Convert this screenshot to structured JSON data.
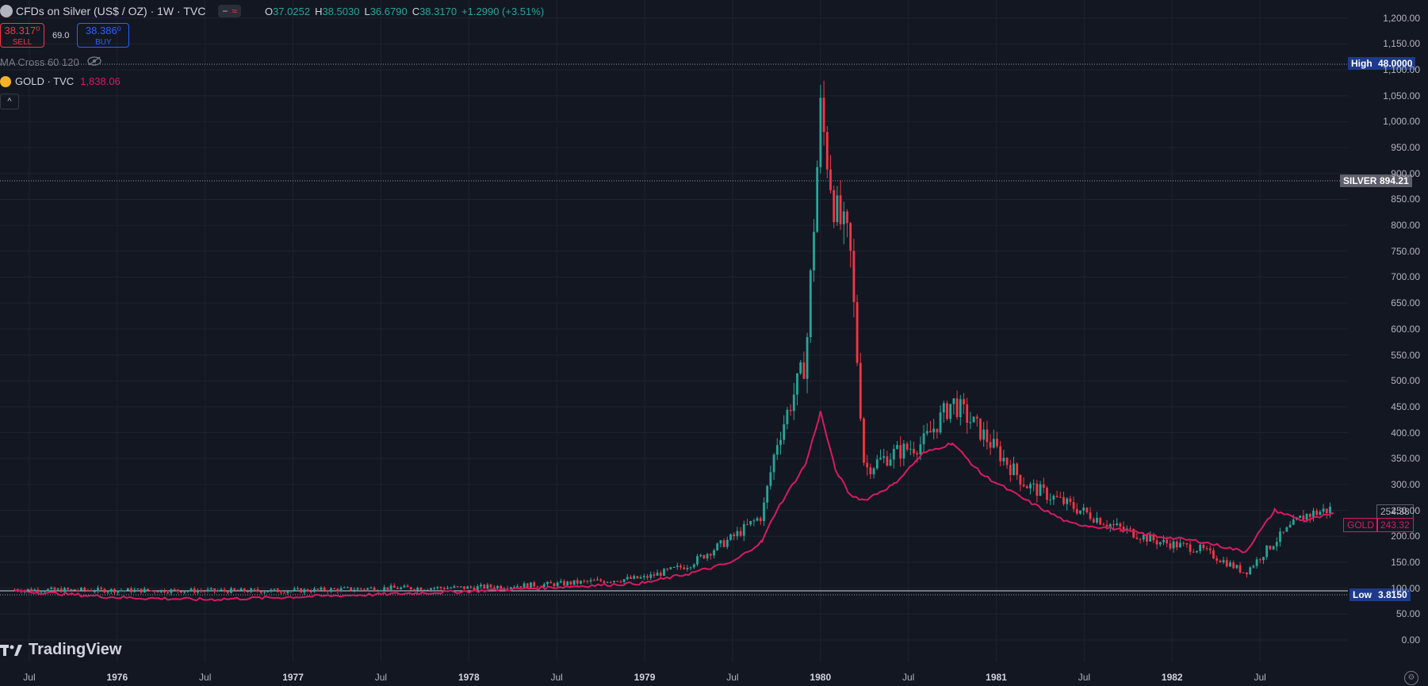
{
  "header": {
    "title": "CFDs on Silver (US$ / OZ) · 1W · TVC",
    "ohlc": [
      {
        "k": "O",
        "v": "37.0252"
      },
      {
        "k": "H",
        "v": "38.5030"
      },
      {
        "k": "L",
        "v": "36.6790"
      },
      {
        "k": "C",
        "v": "38.3170"
      },
      {
        "k": "",
        "v": "+1.2990 (+3.51%)"
      }
    ],
    "badge_dash": "−",
    "badge_wave": "≈"
  },
  "trade": {
    "sell_price": "38.317⁰",
    "sell_label": "SELL",
    "spread": "69.0",
    "buy_price": "38.386⁰",
    "buy_label": "BUY"
  },
  "indicators": {
    "ma_cross": "MA Cross 60 120",
    "compare_symbol": "GOLD · TVC",
    "compare_value": "1,838.06"
  },
  "price_axis": {
    "labels": [
      "1,200.00",
      "1,150.00",
      "1,100.00",
      "1,050.00",
      "1,000.00",
      "950.00",
      "900.00",
      "850.00",
      "800.00",
      "750.00",
      "700.00",
      "650.00",
      "600.00",
      "550.00",
      "500.00",
      "450.00",
      "400.00",
      "350.00",
      "300.00",
      "250.00",
      "200.00",
      "150.00",
      "100.00",
      "50.00",
      "0.00"
    ]
  },
  "time_axis": {
    "labels": [
      "Jul",
      "1976",
      "Jul",
      "1977",
      "Jul",
      "1978",
      "Jul",
      "1979",
      "Jul",
      "1980",
      "Jul",
      "1981",
      "Jul",
      "1982",
      "Jul"
    ]
  },
  "tags": {
    "high_label": "High",
    "high_value": "48.0000",
    "silver_label": "SILVER",
    "silver_value": "894.21",
    "last_value": "254.38",
    "gold_label": "GOLD",
    "gold_value": "243.32",
    "low_label": "Low",
    "low_value": "3.8150"
  },
  "colors": {
    "background": "#131722",
    "up": "#26a69a",
    "down": "#f23645",
    "gold_line": "#d81b60",
    "grid": "#1f2330"
  },
  "branding": {
    "logo_text": "TradingView"
  },
  "chart_data": {
    "type": "candlestick",
    "y_range": [
      0,
      1250
    ],
    "x_range": [
      "1975-05",
      "1983-01"
    ],
    "series": [
      {
        "name": "SILVER",
        "kind": "candles",
        "x": [
          "1975-06",
          "1976-01",
          "1976-07",
          "1977-01",
          "1977-07",
          "1978-01",
          "1978-07",
          "1979-01",
          "1979-04",
          "1979-07",
          "1979-09",
          "1979-10",
          "1979-12",
          "1980-01",
          "1980-02",
          "1980-03",
          "1980-04",
          "1980-06",
          "1980-08",
          "1980-10",
          "1980-12",
          "1981-03",
          "1981-06",
          "1981-09",
          "1981-12",
          "1982-03",
          "1982-06",
          "1982-08",
          "1982-10",
          "1982-12"
        ],
        "y": [
          97,
          96,
          95,
          95,
          100,
          101,
          108,
          120,
          145,
          198,
          240,
          380,
          540,
          1020,
          830,
          760,
          330,
          360,
          380,
          460,
          400,
          300,
          260,
          220,
          190,
          175,
          130,
          190,
          240,
          254
        ]
      },
      {
        "name": "GOLD",
        "kind": "line",
        "x": [
          "1975-06",
          "1976-01",
          "1976-07",
          "1977-01",
          "1977-07",
          "1978-01",
          "1978-07",
          "1979-01",
          "1979-04",
          "1979-07",
          "1979-09",
          "1979-10",
          "1979-12",
          "1980-01",
          "1980-02",
          "1980-03",
          "1980-04",
          "1980-06",
          "1980-08",
          "1980-10",
          "1980-12",
          "1981-03",
          "1981-06",
          "1981-09",
          "1981-12",
          "1982-03",
          "1982-06",
          "1982-08",
          "1982-10",
          "1982-12"
        ],
        "y": [
          95,
          82,
          78,
          83,
          88,
          94,
          102,
          110,
          128,
          150,
          190,
          250,
          340,
          440,
          330,
          280,
          270,
          300,
          360,
          380,
          320,
          270,
          225,
          215,
          200,
          190,
          170,
          250,
          230,
          243
        ]
      }
    ]
  }
}
